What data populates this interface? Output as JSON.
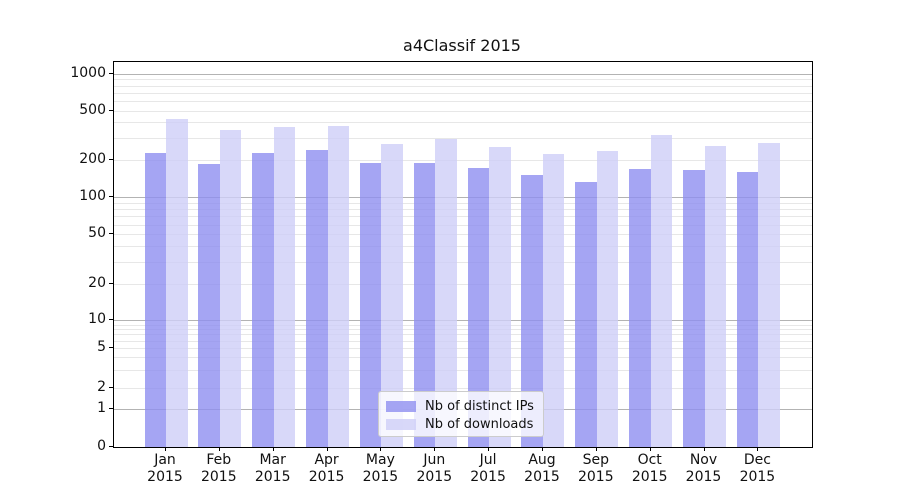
{
  "page": {
    "background": "#ffffff"
  },
  "chart_data": {
    "type": "bar",
    "title": "a4Classif 2015",
    "categories": [
      "Jan",
      "Feb",
      "Mar",
      "Apr",
      "May",
      "Jun",
      "Jul",
      "Aug",
      "Sep",
      "Oct",
      "Nov",
      "Dec"
    ],
    "xtick_year": "2015",
    "series": [
      {
        "name": "Nb of distinct IPs",
        "color": "rgba(142,142,240,0.8)",
        "values": [
          224,
          184,
          225,
          239,
          187,
          186,
          172,
          151,
          132,
          168,
          165,
          159
        ]
      },
      {
        "name": "Nb of downloads",
        "color": "rgba(206,206,247,0.8)",
        "values": [
          430,
          350,
          365,
          375,
          268,
          295,
          254,
          222,
          236,
          314,
          256,
          273
        ]
      }
    ],
    "yscale": "symlog",
    "yticks": [
      0,
      1,
      2,
      5,
      10,
      20,
      50,
      100,
      200,
      500,
      1000
    ],
    "ylim": [
      0,
      1250
    ],
    "grid": true,
    "legend_position": "lower center",
    "colors": {
      "grid_major": "#b3b3b3",
      "grid_minor": "#e7e7e7",
      "axis": "#000000",
      "text": "#111111",
      "legend_border": "#cccccc",
      "legend_bg": "rgba(255,255,255,0.8)"
    }
  }
}
